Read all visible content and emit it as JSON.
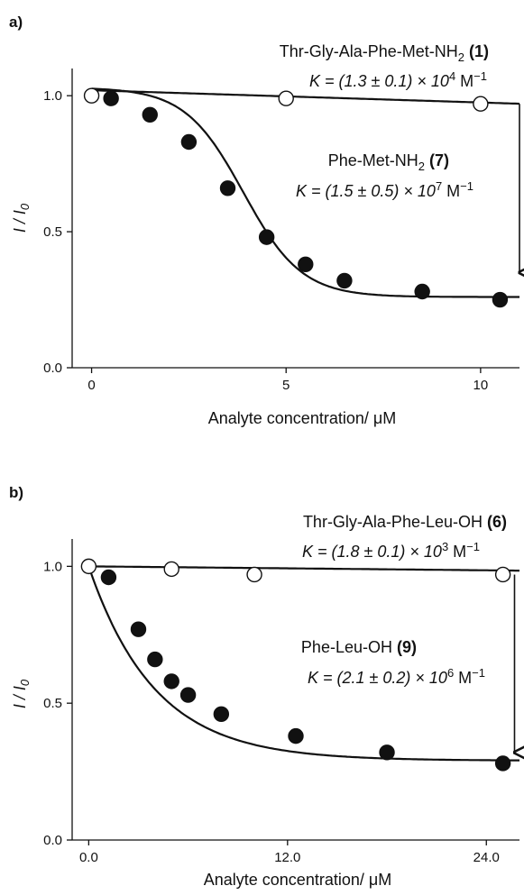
{
  "chart_data": [
    {
      "type": "scatter",
      "panel_label": "a)",
      "xlabel": "Analyte concentration/ μM",
      "ylabel": "I / I0",
      "xlim": [
        -0.5,
        11
      ],
      "ylim": [
        0,
        1.1
      ],
      "x_ticks": [
        0,
        5,
        10
      ],
      "x_tick_labels": [
        "0",
        "5",
        "10"
      ],
      "y_ticks": [
        0.0,
        0.5,
        1.0
      ],
      "y_tick_labels": [
        "0.0",
        "0.5",
        "1.0"
      ],
      "grid": false,
      "annotation_arrow": {
        "x": 11,
        "y_from": 0.97,
        "y_to": 0.35
      },
      "series": [
        {
          "name": "Thr-Gly-Ala-Phe-Met-NH2 (1)",
          "label_main": "Thr-Gly-Ala-Phe-Met-NH",
          "label_sub": "2",
          "label_bold": "(1)",
          "k_prefix": "K = (1.3 ± 0.1) × 10",
          "k_exp": "4",
          "k_unit": " M",
          "k_unit_exp": "−1",
          "marker": "open",
          "fit": {
            "model": "linear",
            "y0": 1.02,
            "slope": -0.0045
          },
          "x": [
            0,
            5,
            10
          ],
          "y": [
            1.0,
            0.99,
            0.97
          ]
        },
        {
          "name": "Phe-Met-NH2 (7)",
          "label_main": "Phe-Met-NH",
          "label_sub": "2",
          "label_bold": "(7)",
          "k_prefix": "K = (1.5 ± 0.5) × 10",
          "k_exp": "7",
          "k_unit": " M",
          "k_unit_exp": "−1",
          "marker": "filled",
          "fit": {
            "model": "sigmoid",
            "top": 1.03,
            "bottom": 0.26,
            "x50": 3.9,
            "slope": 0.75
          },
          "x": [
            0.5,
            1.5,
            2.5,
            3.5,
            4.5,
            5.5,
            6.5,
            8.5,
            10.5
          ],
          "y": [
            0.99,
            0.93,
            0.83,
            0.66,
            0.48,
            0.38,
            0.32,
            0.28,
            0.25
          ]
        }
      ]
    },
    {
      "type": "scatter",
      "panel_label": "b)",
      "xlabel": "Analyte concentration/ μM",
      "ylabel": "I / I0",
      "xlim": [
        -1,
        26
      ],
      "ylim": [
        0,
        1.1
      ],
      "x_ticks": [
        0,
        12,
        24
      ],
      "x_tick_labels": [
        "0.0",
        "12.0",
        "24.0"
      ],
      "y_ticks": [
        0.0,
        0.5,
        1.0
      ],
      "y_tick_labels": [
        "0.0",
        "0.5",
        "1.0"
      ],
      "grid": false,
      "annotation_arrow": {
        "x": 25.7,
        "y_from": 0.97,
        "y_to": 0.32
      },
      "series": [
        {
          "name": "Thr-Gly-Ala-Phe-Leu-OH (6)",
          "label_main": "Thr-Gly-Ala-Phe-Leu-OH",
          "label_sub": "",
          "label_bold": "(6)",
          "k_prefix": "K = (1.8 ± 0.1) × 10",
          "k_exp": "3",
          "k_unit": " M",
          "k_unit_exp": "−1",
          "marker": "open",
          "fit": {
            "model": "linear",
            "y0": 1.0,
            "slope": -0.0006
          },
          "x": [
            0,
            5,
            10,
            25
          ],
          "y": [
            1.0,
            0.99,
            0.97,
            0.97
          ]
        },
        {
          "name": "Phe-Leu-OH (9)",
          "label_main": "Phe-Leu-OH",
          "label_sub": "",
          "label_bold": "(9)",
          "k_prefix": "K = (2.1 ± 0.2) × 10",
          "k_exp": "6",
          "k_unit": " M",
          "k_unit_exp": "−1",
          "marker": "filled",
          "fit": {
            "model": "exp",
            "start": 1.0,
            "plateau": 0.29,
            "rate": 0.25
          },
          "x": [
            1.2,
            3,
            4,
            5,
            6,
            8,
            12.5,
            18,
            25
          ],
          "y": [
            0.96,
            0.77,
            0.66,
            0.58,
            0.53,
            0.46,
            0.38,
            0.32,
            0.28
          ]
        }
      ]
    }
  ]
}
